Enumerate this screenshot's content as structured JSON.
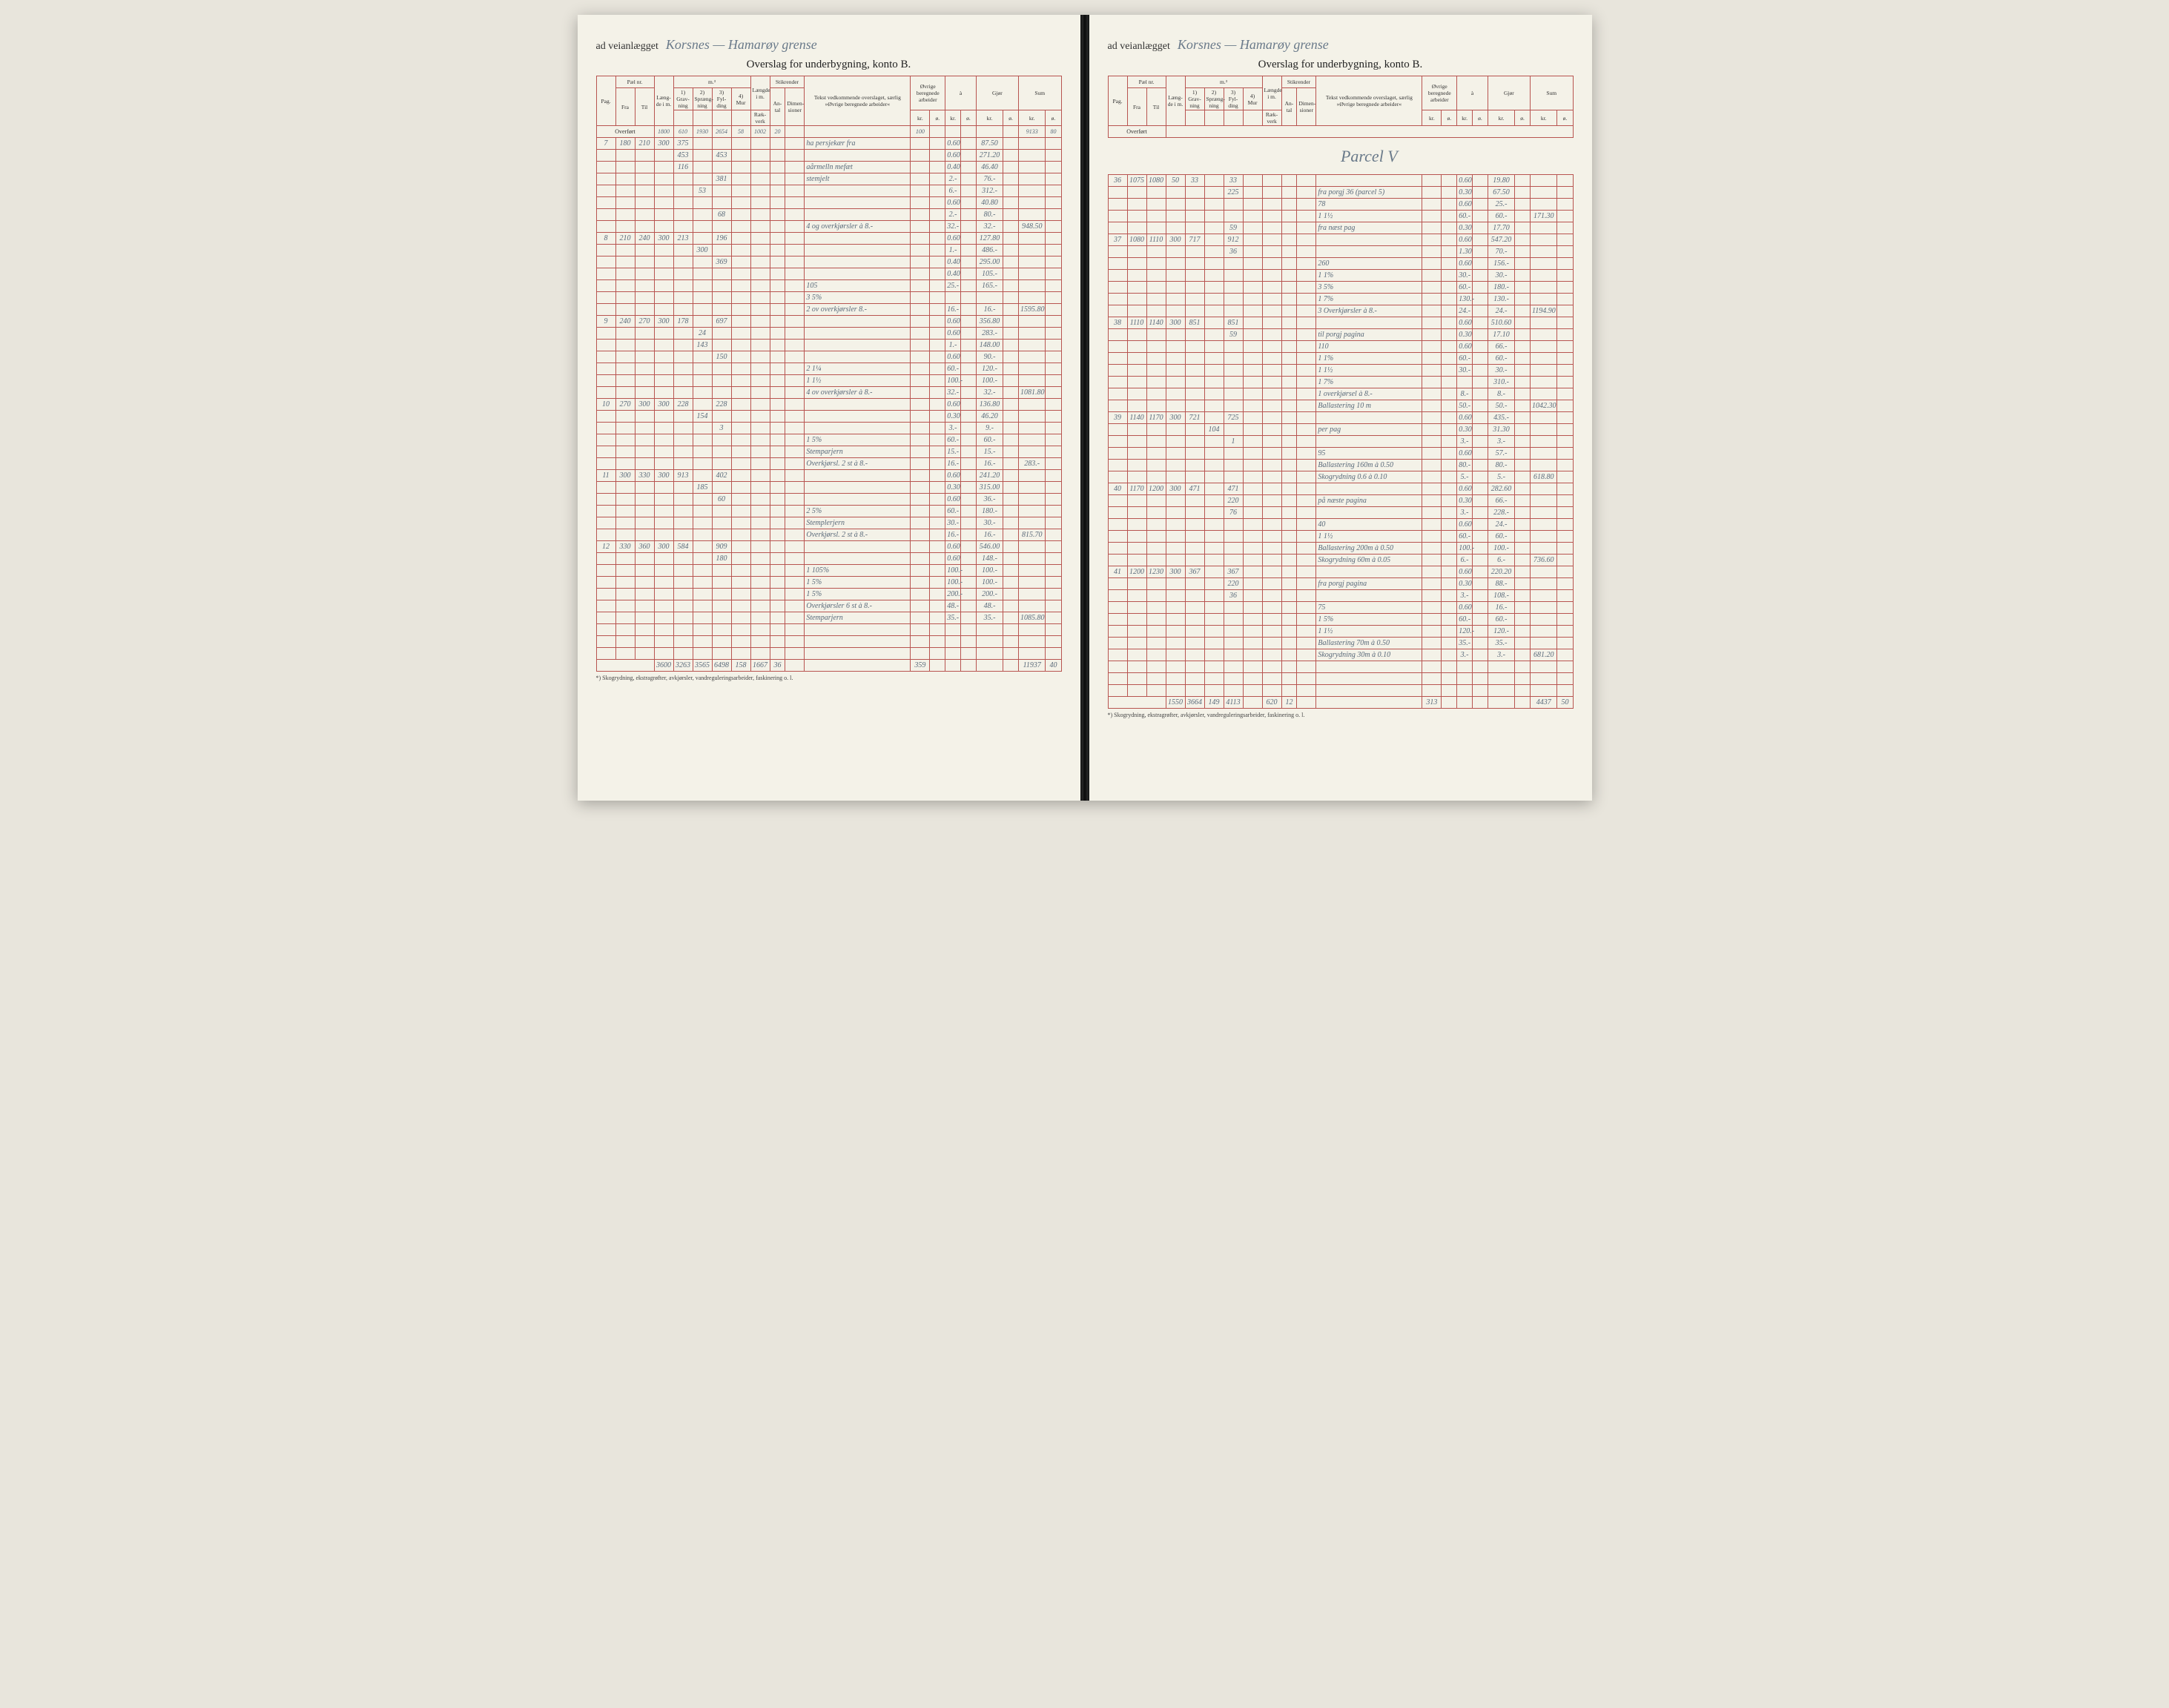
{
  "header_label": "ad veianlægget",
  "left_route": "Korsnes — Hamarøy grense",
  "right_route": "Korsnes — Hamarøy grense",
  "title": "Overslag for underbygning, konto B.",
  "columns": {
    "pag": "Pag.",
    "pael_nr": "Pæl nr.",
    "fra": "Fra",
    "til": "Til",
    "laengde": "Læng-de i m.",
    "m3": "m.³",
    "gravning": "Grav-ning",
    "sprengning": "Spræng-ning",
    "fylding": "Fyl-ding",
    "mur": "Mur",
    "laengde_lm": "Længde i m.",
    "raekverk": "Ræk-verk",
    "antal": "An-tal",
    "stikrender": "Stikrender",
    "dimensioner": "Dimen-sioner",
    "tekst": "Tekst vedkommende overslaget, særlig »Øvrige beregnede arbeider«",
    "ovrige": "Øvrige beregnede arbeider",
    "a": "à",
    "gjor": "Gjør",
    "sum": "Sum",
    "kr": "kr.",
    "o": "ø."
  },
  "overfort": "Overført",
  "footnote": "*) Skogrydning, ekstragrøfter, avkjørsler, vandreguleringsarbeider, faskinering o. l.",
  "left_overfort_row": [
    "1800",
    "610",
    "1930",
    "2654",
    "58",
    "1002",
    "20",
    "",
    "",
    "100",
    "",
    "",
    "",
    "9133",
    "80"
  ],
  "right_parcel": "Parcel V",
  "left_rows": [
    {
      "pag": "7",
      "fra": "180",
      "til": "210",
      "len": "300",
      "g": "375",
      "s": "",
      "f": "",
      "note": "ha persjekær fra",
      "c1": "0.60",
      "c2": "",
      "c3": "87.50"
    },
    {
      "pag": "",
      "fra": "",
      "til": "",
      "len": "",
      "g": "453",
      "s": "",
      "f": "453",
      "note": "",
      "c1": "0.60",
      "c2": "",
      "c3": "271.20"
    },
    {
      "pag": "",
      "fra": "",
      "til": "",
      "len": "",
      "g": "116",
      "s": "",
      "f": "",
      "note": "aårmelln mefæt",
      "c1": "0.40",
      "c2": "",
      "c3": "46.40"
    },
    {
      "pag": "",
      "fra": "",
      "til": "",
      "len": "",
      "g": "",
      "s": "",
      "f": "381",
      "note": "stemjelt",
      "c1": "2.-",
      "c2": "",
      "c3": "76.-"
    },
    {
      "pag": "",
      "fra": "",
      "til": "",
      "len": "",
      "g": "",
      "s": "53",
      "f": "",
      "note": "",
      "c1": "6.-",
      "c2": "",
      "c3": "312.-"
    },
    {
      "pag": "",
      "fra": "",
      "til": "",
      "len": "",
      "g": "",
      "s": "",
      "f": "",
      "note": "",
      "c1": "0.60",
      "c2": "",
      "c3": "40.80"
    },
    {
      "pag": "",
      "fra": "",
      "til": "",
      "len": "",
      "g": "",
      "s": "",
      "f": "68",
      "note": "",
      "c1": "2.-",
      "c2": "",
      "c3": "80.-"
    },
    {
      "pag": "",
      "fra": "",
      "til": "",
      "len": "",
      "g": "",
      "s": "",
      "f": "",
      "note": "4 og overkjørsler à 8.-",
      "c1": "32.-",
      "c2": "",
      "c3": "32.-",
      "sum": "948.50"
    },
    {
      "pag": "8",
      "fra": "210",
      "til": "240",
      "len": "300",
      "g": "213",
      "s": "",
      "f": "196",
      "note": "",
      "c1": "0.60",
      "c2": "",
      "c3": "127.80"
    },
    {
      "pag": "",
      "fra": "",
      "til": "",
      "len": "",
      "g": "",
      "s": "300",
      "f": "",
      "note": "",
      "c1": "1.-",
      "c2": "",
      "c3": "486.-"
    },
    {
      "pag": "",
      "fra": "",
      "til": "",
      "len": "",
      "g": "",
      "s": "",
      "f": "369",
      "note": "",
      "c1": "0.40",
      "c2": "",
      "c3": "295.00"
    },
    {
      "pag": "",
      "fra": "",
      "til": "",
      "len": "",
      "g": "",
      "s": "",
      "f": "",
      "note": "",
      "c1": "0.40",
      "c2": "",
      "c3": "105.-"
    },
    {
      "pag": "",
      "fra": "",
      "til": "",
      "len": "",
      "g": "",
      "s": "",
      "f": "",
      "note": "105",
      "c1": "25.-",
      "c2": "",
      "c3": "165.-"
    },
    {
      "pag": "",
      "fra": "",
      "til": "",
      "len": "",
      "g": "",
      "s": "",
      "f": "",
      "note": "3 5%",
      "c1": "",
      "c2": "",
      "c3": ""
    },
    {
      "pag": "",
      "fra": "",
      "til": "",
      "len": "",
      "g": "",
      "s": "",
      "f": "",
      "note": "2 ov overkjørsler 8.-",
      "c1": "16.-",
      "c2": "",
      "c3": "16.-",
      "sum": "1595.80"
    },
    {
      "pag": "9",
      "fra": "240",
      "til": "270",
      "len": "300",
      "g": "178",
      "s": "",
      "f": "697",
      "note": "",
      "c1": "0.60",
      "c2": "",
      "c3": "356.80"
    },
    {
      "pag": "",
      "fra": "",
      "til": "",
      "len": "",
      "g": "",
      "s": "24",
      "f": "",
      "note": "",
      "c1": "0.60",
      "c2": "",
      "c3": "283.-"
    },
    {
      "pag": "",
      "fra": "",
      "til": "",
      "len": "",
      "g": "",
      "s": "143",
      "f": "",
      "note": "",
      "c1": "1.-",
      "c2": "",
      "c3": "148.00"
    },
    {
      "pag": "",
      "fra": "",
      "til": "",
      "len": "",
      "g": "",
      "s": "",
      "f": "150",
      "note": "",
      "c1": "0.60",
      "c2": "",
      "c3": "90.-"
    },
    {
      "pag": "",
      "fra": "",
      "til": "",
      "len": "",
      "g": "",
      "s": "",
      "f": "",
      "note": "2 1¼",
      "c1": "60.-",
      "c2": "",
      "c3": "120.-"
    },
    {
      "pag": "",
      "fra": "",
      "til": "",
      "len": "",
      "g": "",
      "s": "",
      "f": "",
      "note": "1 1½",
      "c1": "100.-",
      "c2": "",
      "c3": "100.-"
    },
    {
      "pag": "",
      "fra": "",
      "til": "",
      "len": "",
      "g": "",
      "s": "",
      "f": "",
      "note": "4 ov overkjørsler à 8.-",
      "c1": "32.-",
      "c2": "",
      "c3": "32.-",
      "sum": "1081.80"
    },
    {
      "pag": "10",
      "fra": "270",
      "til": "300",
      "len": "300",
      "g": "228",
      "s": "",
      "f": "228",
      "note": "",
      "c1": "0.60",
      "c2": "",
      "c3": "136.80"
    },
    {
      "pag": "",
      "fra": "",
      "til": "",
      "len": "",
      "g": "",
      "s": "154",
      "f": "",
      "note": "",
      "c1": "0.30",
      "c2": "",
      "c3": "46.20"
    },
    {
      "pag": "",
      "fra": "",
      "til": "",
      "len": "",
      "g": "",
      "s": "",
      "f": "3",
      "note": "",
      "c1": "3.-",
      "c2": "",
      "c3": "9.-"
    },
    {
      "pag": "",
      "fra": "",
      "til": "",
      "len": "",
      "g": "",
      "s": "",
      "f": "",
      "note": "1 5%",
      "c1": "60.-",
      "c2": "",
      "c3": "60.-"
    },
    {
      "pag": "",
      "fra": "",
      "til": "",
      "len": "",
      "g": "",
      "s": "",
      "f": "",
      "note": "Stemparjern",
      "c1": "15.-",
      "c2": "",
      "c3": "15.-"
    },
    {
      "pag": "",
      "fra": "",
      "til": "",
      "len": "",
      "g": "",
      "s": "",
      "f": "",
      "note": "Overkjørsl. 2 st à 8.-",
      "c1": "16.-",
      "c2": "",
      "c3": "16.-",
      "sum": "283.-"
    },
    {
      "pag": "11",
      "fra": "300",
      "til": "330",
      "len": "300",
      "g": "913",
      "s": "",
      "f": "402",
      "note": "",
      "c1": "0.60",
      "c2": "",
      "c3": "241.20"
    },
    {
      "pag": "",
      "fra": "",
      "til": "",
      "len": "",
      "g": "",
      "s": "185",
      "f": "",
      "note": "",
      "c1": "0.30",
      "c2": "",
      "c3": "315.00"
    },
    {
      "pag": "",
      "fra": "",
      "til": "",
      "len": "",
      "g": "",
      "s": "",
      "f": "60",
      "note": "",
      "c1": "0.60",
      "c2": "",
      "c3": "36.-"
    },
    {
      "pag": "",
      "fra": "",
      "til": "",
      "len": "",
      "g": "",
      "s": "",
      "f": "",
      "note": "2 5%",
      "c1": "60.-",
      "c2": "",
      "c3": "180.-"
    },
    {
      "pag": "",
      "fra": "",
      "til": "",
      "len": "",
      "g": "",
      "s": "",
      "f": "",
      "note": "Stemplerjern",
      "c1": "30.-",
      "c2": "",
      "c3": "30.-"
    },
    {
      "pag": "",
      "fra": "",
      "til": "",
      "len": "",
      "g": "",
      "s": "",
      "f": "",
      "note": "Overkjørsl. 2 st à 8.-",
      "c1": "16.-",
      "c2": "",
      "c3": "16.-",
      "sum": "815.70"
    },
    {
      "pag": "12",
      "fra": "330",
      "til": "360",
      "len": "300",
      "g": "584",
      "s": "",
      "f": "909",
      "note": "",
      "c1": "0.60",
      "c2": "",
      "c3": "546.00"
    },
    {
      "pag": "",
      "fra": "",
      "til": "",
      "len": "",
      "g": "",
      "s": "",
      "f": "180",
      "note": "",
      "c1": "0.60",
      "c2": "",
      "c3": "148.-"
    },
    {
      "pag": "",
      "fra": "",
      "til": "",
      "len": "",
      "g": "",
      "s": "",
      "f": "",
      "note": "1 105%",
      "c1": "100.-",
      "c2": "",
      "c3": "100.-"
    },
    {
      "pag": "",
      "fra": "",
      "til": "",
      "len": "",
      "g": "",
      "s": "",
      "f": "",
      "note": "1 5%",
      "c1": "100.-",
      "c2": "",
      "c3": "100.-"
    },
    {
      "pag": "",
      "fra": "",
      "til": "",
      "len": "",
      "g": "",
      "s": "",
      "f": "",
      "note": "1 5%",
      "c1": "200.-",
      "c2": "",
      "c3": "200.-"
    },
    {
      "pag": "",
      "fra": "",
      "til": "",
      "len": "",
      "g": "",
      "s": "",
      "f": "",
      "note": "Overkjørsler 6 st à 8.-",
      "c1": "48.-",
      "c2": "",
      "c3": "48.-"
    },
    {
      "pag": "",
      "fra": "",
      "til": "",
      "len": "",
      "g": "",
      "s": "",
      "f": "",
      "note": "Stemparjern",
      "c1": "35.-",
      "c2": "",
      "c3": "35.-",
      "sum": "1085.80"
    }
  ],
  "left_footer": [
    "3600",
    "3263",
    "3565",
    "6498",
    "158",
    "1667",
    "36",
    "",
    "",
    "359",
    "",
    "",
    "",
    "11937",
    "40"
  ],
  "right_rows": [
    {
      "pag": "36",
      "fra": "1075",
      "til": "1080",
      "len": "50",
      "g": "33",
      "s": "",
      "f": "33",
      "note": "",
      "c1": "0.60",
      "c2": "",
      "c3": "19.80"
    },
    {
      "pag": "",
      "fra": "",
      "til": "",
      "len": "",
      "g": "",
      "s": "",
      "f": "225",
      "note": "fra porgj 36 (parcel 5)",
      "c1": "0.30",
      "c2": "",
      "c3": "67.50"
    },
    {
      "pag": "",
      "fra": "",
      "til": "",
      "len": "",
      "g": "",
      "s": "",
      "f": "",
      "note": "78",
      "c1": "0.60",
      "c2": "",
      "c3": "25.-"
    },
    {
      "pag": "",
      "fra": "",
      "til": "",
      "len": "",
      "g": "",
      "s": "",
      "f": "",
      "note": "1 1½",
      "c1": "60.-",
      "c2": "",
      "c3": "60.-",
      "sum": "171.30"
    },
    {
      "pag": "",
      "fra": "",
      "til": "",
      "len": "",
      "g": "",
      "s": "",
      "f": "59",
      "note": "fra næst pag",
      "c1": "0.30",
      "c2": "",
      "c3": "17.70"
    },
    {
      "pag": "37",
      "fra": "1080",
      "til": "1110",
      "len": "300",
      "g": "717",
      "s": "",
      "f": "912",
      "note": "",
      "c1": "0.60",
      "c2": "",
      "c3": "547.20"
    },
    {
      "pag": "",
      "fra": "",
      "til": "",
      "len": "",
      "g": "",
      "s": "",
      "f": "36",
      "note": "",
      "c1": "1.30",
      "c2": "",
      "c3": "70.-"
    },
    {
      "pag": "",
      "fra": "",
      "til": "",
      "len": "",
      "g": "",
      "s": "",
      "f": "",
      "note": "260",
      "c1": "0.60",
      "c2": "",
      "c3": "156.-"
    },
    {
      "pag": "",
      "fra": "",
      "til": "",
      "len": "",
      "g": "",
      "s": "",
      "f": "",
      "note": "1 1%",
      "c1": "30.-",
      "c2": "",
      "c3": "30.-"
    },
    {
      "pag": "",
      "fra": "",
      "til": "",
      "len": "",
      "g": "",
      "s": "",
      "f": "",
      "note": "3 5%",
      "c1": "60.-",
      "c2": "",
      "c3": "180.-"
    },
    {
      "pag": "",
      "fra": "",
      "til": "",
      "len": "",
      "g": "",
      "s": "",
      "f": "",
      "note": "1 7%",
      "c1": "130.-",
      "c2": "",
      "c3": "130.-"
    },
    {
      "pag": "",
      "fra": "",
      "til": "",
      "len": "",
      "g": "",
      "s": "",
      "f": "",
      "note": "3 Overkjørsler à 8.-",
      "c1": "24.-",
      "c2": "",
      "c3": "24.-",
      "sum": "1194.90"
    },
    {
      "pag": "38",
      "fra": "1110",
      "til": "1140",
      "len": "300",
      "g": "851",
      "s": "",
      "f": "851",
      "note": "",
      "c1": "0.60",
      "c2": "",
      "c3": "510.60"
    },
    {
      "pag": "",
      "fra": "",
      "til": "",
      "len": "",
      "g": "",
      "s": "",
      "f": "59",
      "note": "til porgj pagina",
      "c1": "0.30",
      "c2": "",
      "c3": "17.10"
    },
    {
      "pag": "",
      "fra": "",
      "til": "",
      "len": "",
      "g": "",
      "s": "",
      "f": "",
      "note": "110",
      "c1": "0.60",
      "c2": "",
      "c3": "66.-"
    },
    {
      "pag": "",
      "fra": "",
      "til": "",
      "len": "",
      "g": "",
      "s": "",
      "f": "",
      "note": "1 1%",
      "c1": "60.-",
      "c2": "",
      "c3": "60.-"
    },
    {
      "pag": "",
      "fra": "",
      "til": "",
      "len": "",
      "g": "",
      "s": "",
      "f": "",
      "note": "1 1½",
      "c1": "30.-",
      "c2": "",
      "c3": "30.-"
    },
    {
      "pag": "",
      "fra": "",
      "til": "",
      "len": "",
      "g": "",
      "s": "",
      "f": "",
      "note": "1 7%",
      "c1": "",
      "c2": "",
      "c3": "310.-"
    },
    {
      "pag": "",
      "fra": "",
      "til": "",
      "len": "",
      "g": "",
      "s": "",
      "f": "",
      "note": "1 overkjørsel à 8.-",
      "c1": "8.-",
      "c2": "",
      "c3": "8.-"
    },
    {
      "pag": "",
      "fra": "",
      "til": "",
      "len": "",
      "g": "",
      "s": "",
      "f": "",
      "note": "Ballastering 10 m",
      "c1": "50.-",
      "c2": "",
      "c3": "50.-",
      "sum": "1042.30"
    },
    {
      "pag": "39",
      "fra": "1140",
      "til": "1170",
      "len": "300",
      "g": "721",
      "s": "",
      "f": "725",
      "note": "",
      "c1": "0.60",
      "c2": "",
      "c3": "435.-"
    },
    {
      "pag": "",
      "fra": "",
      "til": "",
      "len": "",
      "g": "",
      "s": "104",
      "f": "",
      "note": "per pag",
      "c1": "0.30",
      "c2": "",
      "c3": "31.30"
    },
    {
      "pag": "",
      "fra": "",
      "til": "",
      "len": "",
      "g": "",
      "s": "",
      "f": "1",
      "note": "",
      "c1": "3.-",
      "c2": "",
      "c3": "3.-"
    },
    {
      "pag": "",
      "fra": "",
      "til": "",
      "len": "",
      "g": "",
      "s": "",
      "f": "",
      "note": "95",
      "c1": "0.60",
      "c2": "",
      "c3": "57.-"
    },
    {
      "pag": "",
      "fra": "",
      "til": "",
      "len": "",
      "g": "",
      "s": "",
      "f": "",
      "note": "Ballastering 160m à 0.50",
      "c1": "80.-",
      "c2": "",
      "c3": "80.-"
    },
    {
      "pag": "",
      "fra": "",
      "til": "",
      "len": "",
      "g": "",
      "s": "",
      "f": "",
      "note": "Skogrydning 0.6 à 0.10",
      "c1": "5.-",
      "c2": "",
      "c3": "5.-",
      "sum": "618.80"
    },
    {
      "pag": "40",
      "fra": "1170",
      "til": "1200",
      "len": "300",
      "g": "471",
      "s": "",
      "f": "471",
      "note": "",
      "c1": "0.60",
      "c2": "",
      "c3": "282.60"
    },
    {
      "pag": "",
      "fra": "",
      "til": "",
      "len": "",
      "g": "",
      "s": "",
      "f": "220",
      "note": "på næste pagina",
      "c1": "0.30",
      "c2": "",
      "c3": "66.-"
    },
    {
      "pag": "",
      "fra": "",
      "til": "",
      "len": "",
      "g": "",
      "s": "",
      "f": "76",
      "note": "",
      "c1": "3.-",
      "c2": "",
      "c3": "228.-"
    },
    {
      "pag": "",
      "fra": "",
      "til": "",
      "len": "",
      "g": "",
      "s": "",
      "f": "",
      "note": "40",
      "c1": "0.60",
      "c2": "",
      "c3": "24.-"
    },
    {
      "pag": "",
      "fra": "",
      "til": "",
      "len": "",
      "g": "",
      "s": "",
      "f": "",
      "note": "1 1½",
      "c1": "60.-",
      "c2": "",
      "c3": "60.-"
    },
    {
      "pag": "",
      "fra": "",
      "til": "",
      "len": "",
      "g": "",
      "s": "",
      "f": "",
      "note": "Ballastering 200m à 0.50",
      "c1": "100.-",
      "c2": "",
      "c3": "100.-"
    },
    {
      "pag": "",
      "fra": "",
      "til": "",
      "len": "",
      "g": "",
      "s": "",
      "f": "",
      "note": "Skogrydning 60m à 0.05",
      "c1": "6.-",
      "c2": "",
      "c3": "6.-",
      "sum": "736.60"
    },
    {
      "pag": "41",
      "fra": "1200",
      "til": "1230",
      "len": "300",
      "g": "367",
      "s": "",
      "f": "367",
      "note": "",
      "c1": "0.60",
      "c2": "",
      "c3": "220.20"
    },
    {
      "pag": "",
      "fra": "",
      "til": "",
      "len": "",
      "g": "",
      "s": "",
      "f": "220",
      "note": "fra porgj pagina",
      "c1": "0.30",
      "c2": "",
      "c3": "88.-"
    },
    {
      "pag": "",
      "fra": "",
      "til": "",
      "len": "",
      "g": "",
      "s": "",
      "f": "36",
      "note": "",
      "c1": "3.-",
      "c2": "",
      "c3": "108.-"
    },
    {
      "pag": "",
      "fra": "",
      "til": "",
      "len": "",
      "g": "",
      "s": "",
      "f": "",
      "note": "75",
      "c1": "0.60",
      "c2": "",
      "c3": "16.-"
    },
    {
      "pag": "",
      "fra": "",
      "til": "",
      "len": "",
      "g": "",
      "s": "",
      "f": "",
      "note": "1 5%",
      "c1": "60.-",
      "c2": "",
      "c3": "60.-"
    },
    {
      "pag": "",
      "fra": "",
      "til": "",
      "len": "",
      "g": "",
      "s": "",
      "f": "",
      "note": "1 1½",
      "c1": "120.-",
      "c2": "",
      "c3": "120.-"
    },
    {
      "pag": "",
      "fra": "",
      "til": "",
      "len": "",
      "g": "",
      "s": "",
      "f": "",
      "note": "Ballastering 70m à 0.50",
      "c1": "35.-",
      "c2": "",
      "c3": "35.-"
    },
    {
      "pag": "",
      "fra": "",
      "til": "",
      "len": "",
      "g": "",
      "s": "",
      "f": "",
      "note": "Skogrydning 30m à 0.10",
      "c1": "3.-",
      "c2": "",
      "c3": "3.-",
      "sum": "681.20"
    }
  ],
  "right_footer": [
    "1550",
    "3664",
    "149",
    "4113",
    "",
    "620",
    "12",
    "",
    "",
    "313",
    "",
    "",
    "",
    "4437",
    "50"
  ]
}
